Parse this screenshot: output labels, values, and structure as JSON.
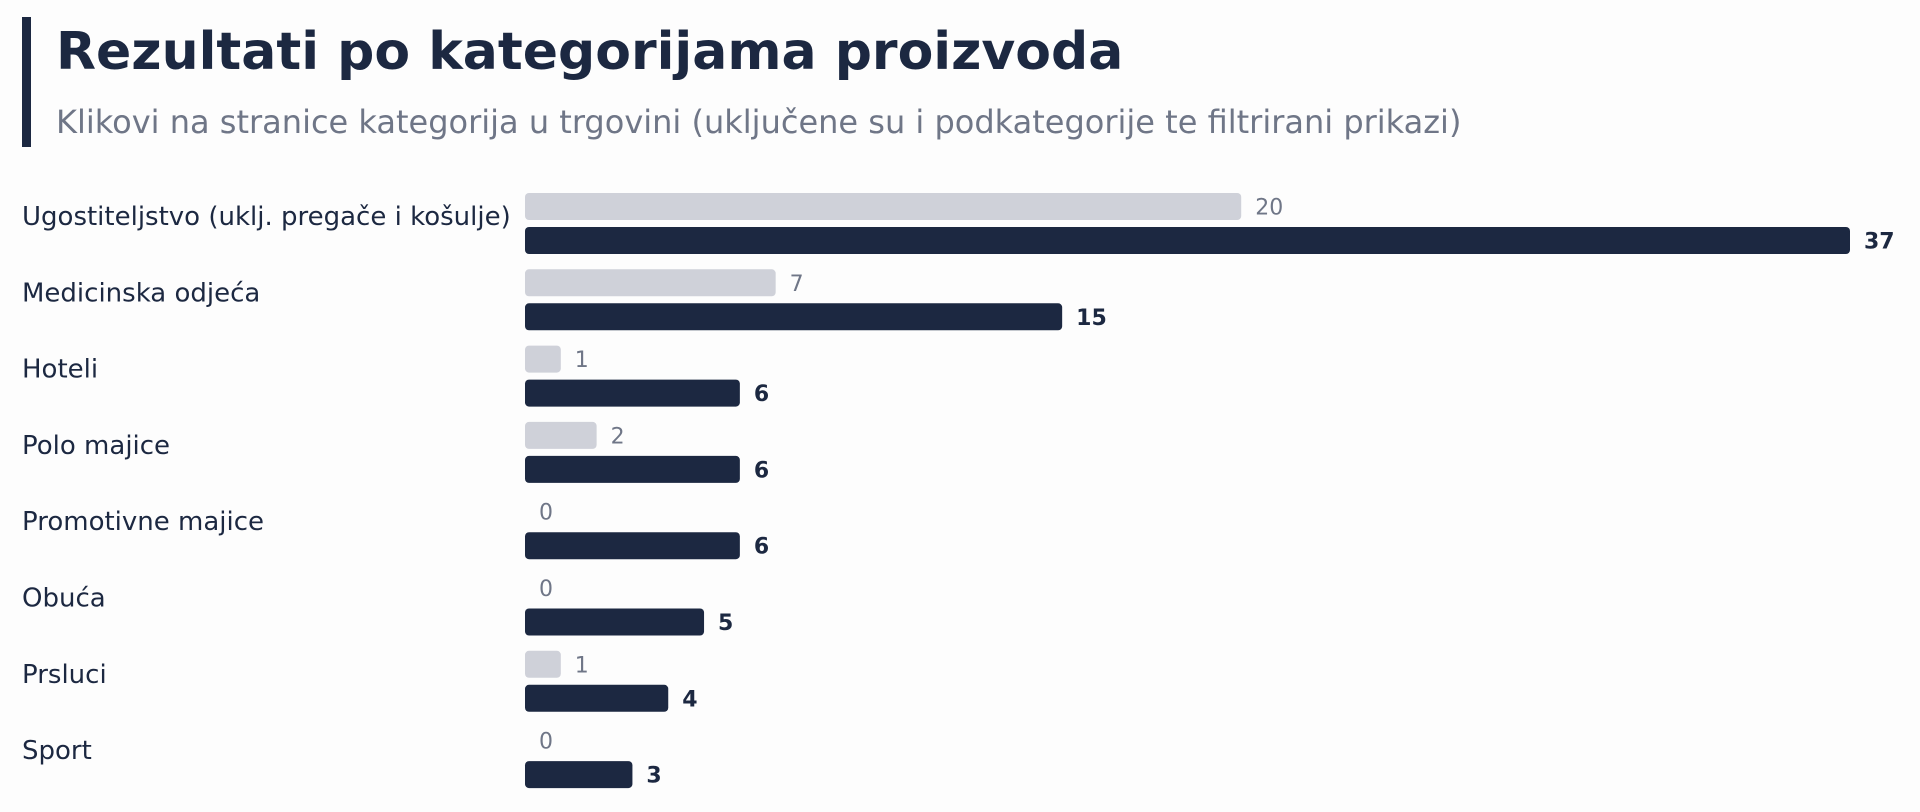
{
  "header": {
    "title": "Rezultati po kategorijama proizvoda",
    "subtitle": "Klikovi na stranice kategorija u trgovini (uključene su i podkategorije te filtrirani prikazi)"
  },
  "colors": {
    "accent": "#1c2841",
    "previous_bar": "#cfd1d9",
    "current_bar": "#1c2841",
    "muted_text": "#6f7687"
  },
  "chart_data": {
    "type": "bar",
    "orientation": "horizontal",
    "categories": [
      "Ugostiteljstvo (uklj. pregače i košulje)",
      "Medicinska odjeća",
      "Hoteli",
      "Polo majice",
      "Promotivne majice",
      "Obuća",
      "Prsluci",
      "Sport"
    ],
    "series": [
      {
        "values": [
          20,
          7,
          1,
          2,
          0,
          0,
          1,
          0
        ]
      },
      {
        "values": [
          37,
          15,
          6,
          6,
          6,
          5,
          4,
          3
        ]
      }
    ],
    "xlim": [
      0,
      37
    ],
    "grid": false,
    "legend": "none"
  }
}
